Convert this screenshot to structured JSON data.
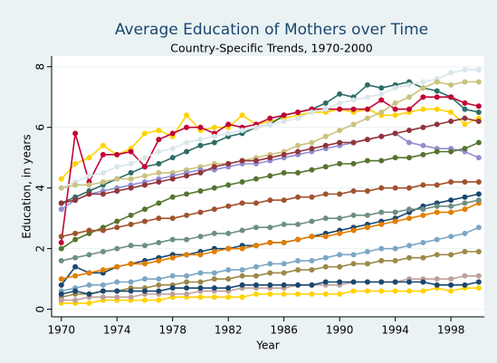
{
  "chart_data": {
    "type": "line",
    "title": "Average Education of Mothers over Time",
    "subtitle": "Country-Specific Trends, 1970-2000",
    "x_label": "Year",
    "y_label": "Education, in years",
    "x": [
      1970,
      1971,
      1972,
      1973,
      1974,
      1975,
      1976,
      1977,
      1978,
      1979,
      1980,
      1981,
      1982,
      1983,
      1984,
      1985,
      1986,
      1987,
      1988,
      1989,
      1990,
      1991,
      1992,
      1993,
      1994,
      1995,
      1996,
      1997,
      1998,
      1999,
      2000
    ],
    "xlim": [
      1969.3,
      2000.4
    ],
    "xticks": [
      1970,
      1974,
      1978,
      1982,
      1986,
      1990,
      1994,
      1998
    ],
    "ylim": [
      -0.25,
      8.35
    ],
    "yticks": [
      0,
      2,
      4,
      6,
      8
    ],
    "grid": true,
    "series": [
      {
        "color": "#ffd200",
        "values": [
          4.3,
          4.8,
          5.0,
          5.4,
          5.1,
          5.3,
          5.8,
          5.9,
          5.7,
          6.4,
          5.9,
          6.0,
          6.0,
          6.4,
          6.1,
          6.2,
          6.3,
          6.4,
          6.5,
          6.5,
          6.6,
          6.5,
          6.6,
          6.4,
          6.4,
          6.5,
          6.6,
          6.6,
          6.5,
          6.1,
          6.3
        ]
      },
      {
        "color": "#2d6d66",
        "values": [
          3.5,
          3.7,
          3.9,
          4.1,
          4.3,
          4.5,
          4.7,
          4.8,
          5.0,
          5.2,
          5.4,
          5.5,
          5.7,
          5.8,
          6.0,
          6.1,
          6.4,
          6.5,
          6.6,
          6.8,
          7.1,
          7.0,
          7.4,
          7.3,
          7.4,
          7.5,
          7.3,
          7.2,
          7.0,
          6.6,
          6.5
        ]
      },
      {
        "color": "#c10534",
        "values": [
          2.2,
          5.8,
          4.2,
          5.1,
          5.1,
          5.2,
          4.7,
          5.6,
          5.8,
          6.0,
          6.0,
          5.8,
          6.1,
          6.0,
          6.1,
          6.3,
          6.4,
          6.5,
          6.6,
          6.6,
          6.6,
          6.6,
          6.6,
          6.9,
          6.6,
          6.6,
          7.0,
          7.0,
          7.0,
          6.8,
          6.7
        ]
      },
      {
        "color": "#d9e6eb",
        "values": [
          4.0,
          4.2,
          4.4,
          4.5,
          4.7,
          4.8,
          5.0,
          5.2,
          5.3,
          5.5,
          5.6,
          5.7,
          5.8,
          5.9,
          6.0,
          6.1,
          6.2,
          6.3,
          6.5,
          6.6,
          6.8,
          6.9,
          7.0,
          7.1,
          7.3,
          7.4,
          7.5,
          7.6,
          7.8,
          7.9,
          7.9
        ]
      },
      {
        "color": "#cac27e",
        "values": [
          4.0,
          4.1,
          4.1,
          4.2,
          4.3,
          4.3,
          4.4,
          4.5,
          4.5,
          4.6,
          4.7,
          4.8,
          4.8,
          4.9,
          5.0,
          5.1,
          5.2,
          5.4,
          5.5,
          5.7,
          5.9,
          6.1,
          6.3,
          6.5,
          6.8,
          7.0,
          7.3,
          7.5,
          7.4,
          7.5,
          7.5
        ]
      },
      {
        "color": "#938dd2",
        "values": [
          3.3,
          3.6,
          3.8,
          3.9,
          4.0,
          4.1,
          4.2,
          4.3,
          4.4,
          4.5,
          4.6,
          4.6,
          4.7,
          4.8,
          4.8,
          4.9,
          5.0,
          5.1,
          5.2,
          5.3,
          5.4,
          5.5,
          5.6,
          5.7,
          5.8,
          5.5,
          5.4,
          5.3,
          5.3,
          5.2,
          5.0
        ]
      },
      {
        "color": "#90353b",
        "values": [
          3.5,
          3.6,
          3.8,
          3.8,
          3.9,
          4.0,
          4.1,
          4.2,
          4.3,
          4.4,
          4.5,
          4.7,
          4.8,
          4.9,
          4.9,
          5.0,
          5.1,
          5.2,
          5.3,
          5.4,
          5.5,
          5.5,
          5.6,
          5.7,
          5.8,
          5.9,
          6.0,
          6.1,
          6.2,
          6.3,
          6.2
        ]
      },
      {
        "color": "#55752f",
        "values": [
          2.0,
          2.3,
          2.5,
          2.7,
          2.9,
          3.1,
          3.3,
          3.5,
          3.7,
          3.8,
          3.9,
          4.0,
          4.1,
          4.2,
          4.3,
          4.4,
          4.5,
          4.5,
          4.6,
          4.7,
          4.8,
          4.8,
          4.9,
          4.9,
          5.0,
          5.0,
          5.1,
          5.2,
          5.2,
          5.3,
          5.5
        ]
      },
      {
        "color": "#a0522d",
        "values": [
          2.4,
          2.5,
          2.6,
          2.6,
          2.7,
          2.8,
          2.9,
          3.0,
          3.0,
          3.1,
          3.2,
          3.3,
          3.4,
          3.5,
          3.5,
          3.6,
          3.6,
          3.7,
          3.7,
          3.8,
          3.8,
          3.9,
          3.9,
          4.0,
          4.0,
          4.0,
          4.1,
          4.1,
          4.2,
          4.2,
          4.2
        ]
      },
      {
        "color": "#1a476f",
        "values": [
          0.8,
          1.4,
          1.2,
          1.2,
          1.4,
          1.5,
          1.6,
          1.7,
          1.8,
          1.8,
          1.9,
          2.0,
          2.0,
          2.1,
          2.1,
          2.2,
          2.2,
          2.3,
          2.4,
          2.5,
          2.6,
          2.7,
          2.8,
          2.9,
          3.0,
          3.2,
          3.4,
          3.5,
          3.6,
          3.7,
          3.8
        ]
      },
      {
        "color": "#e37e00",
        "values": [
          1.0,
          1.1,
          1.2,
          1.3,
          1.4,
          1.5,
          1.5,
          1.6,
          1.7,
          1.8,
          1.8,
          1.9,
          2.0,
          2.0,
          2.1,
          2.2,
          2.2,
          2.3,
          2.4,
          2.4,
          2.5,
          2.6,
          2.7,
          2.8,
          2.9,
          3.0,
          3.1,
          3.2,
          3.2,
          3.3,
          3.5
        ]
      },
      {
        "color": "#6e8e84",
        "values": [
          1.6,
          1.7,
          1.8,
          1.9,
          2.0,
          2.1,
          2.1,
          2.2,
          2.3,
          2.3,
          2.4,
          2.5,
          2.5,
          2.6,
          2.7,
          2.7,
          2.8,
          2.8,
          2.9,
          3.0,
          3.0,
          3.1,
          3.1,
          3.2,
          3.2,
          3.3,
          3.3,
          3.4,
          3.4,
          3.5,
          3.6
        ]
      },
      {
        "color": "#7ba7c6",
        "values": [
          0.6,
          0.7,
          0.8,
          0.8,
          0.9,
          0.9,
          1.0,
          1.0,
          1.1,
          1.1,
          1.2,
          1.2,
          1.3,
          1.3,
          1.4,
          1.5,
          1.5,
          1.6,
          1.6,
          1.7,
          1.8,
          1.8,
          1.9,
          2.0,
          2.0,
          2.1,
          2.2,
          2.3,
          2.4,
          2.5,
          2.7
        ]
      },
      {
        "color": "#9c8847",
        "values": [
          0.4,
          0.5,
          0.5,
          0.6,
          0.6,
          0.7,
          0.7,
          0.8,
          0.8,
          0.9,
          0.9,
          1.0,
          1.0,
          1.1,
          1.1,
          1.2,
          1.2,
          1.3,
          1.3,
          1.4,
          1.4,
          1.5,
          1.5,
          1.6,
          1.6,
          1.7,
          1.7,
          1.8,
          1.8,
          1.9,
          1.9
        ]
      },
      {
        "color": "#ffd200",
        "values": [
          0.2,
          0.2,
          0.2,
          0.3,
          0.3,
          0.3,
          0.3,
          0.3,
          0.4,
          0.4,
          0.4,
          0.4,
          0.4,
          0.4,
          0.5,
          0.5,
          0.5,
          0.5,
          0.5,
          0.5,
          0.5,
          0.6,
          0.6,
          0.6,
          0.6,
          0.6,
          0.6,
          0.7,
          0.6,
          0.7,
          0.7
        ]
      },
      {
        "color": "#bfa19c",
        "values": [
          0.3,
          0.3,
          0.4,
          0.4,
          0.4,
          0.4,
          0.5,
          0.5,
          0.5,
          0.5,
          0.6,
          0.6,
          0.6,
          0.7,
          0.7,
          0.7,
          0.7,
          0.8,
          0.8,
          0.8,
          0.8,
          0.9,
          0.9,
          0.9,
          0.9,
          1.0,
          1.0,
          1.0,
          1.0,
          1.1,
          1.1
        ]
      },
      {
        "color": "#1a476f",
        "values": [
          0.5,
          0.6,
          0.5,
          0.6,
          0.6,
          0.6,
          0.6,
          0.6,
          0.7,
          0.7,
          0.7,
          0.7,
          0.7,
          0.8,
          0.8,
          0.8,
          0.8,
          0.8,
          0.8,
          0.9,
          0.9,
          0.9,
          0.9,
          0.9,
          0.9,
          0.9,
          0.9,
          0.8,
          0.8,
          0.8,
          0.9
        ]
      }
    ]
  }
}
